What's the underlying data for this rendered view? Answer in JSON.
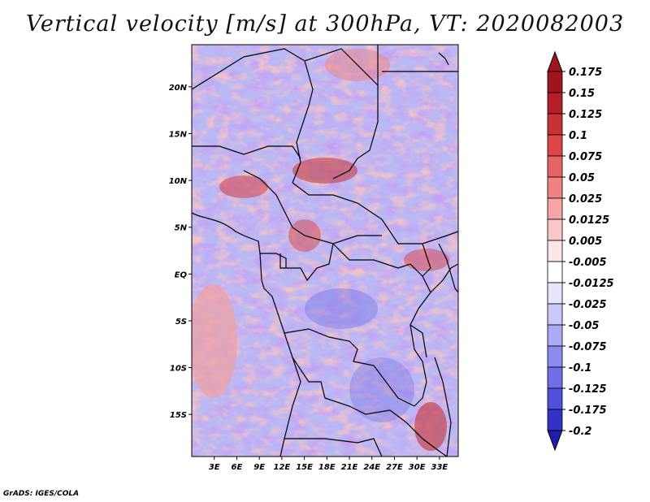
{
  "title": "Vertical velocity [m/s] at 300hPa, VT: 2020082003",
  "credit": "GrADS: IGES/COLA",
  "map": {
    "lon_range": [
      0,
      35.5
    ],
    "lat_range": [
      -19.5,
      24.5
    ],
    "lat_ticks": [
      {
        "value": 20,
        "label": "20N"
      },
      {
        "value": 15,
        "label": "15N"
      },
      {
        "value": 10,
        "label": "10N"
      },
      {
        "value": 5,
        "label": "5N"
      },
      {
        "value": 0,
        "label": "EQ"
      },
      {
        "value": -5,
        "label": "5S"
      },
      {
        "value": -10,
        "label": "10S"
      },
      {
        "value": -15,
        "label": "15S"
      }
    ],
    "lon_ticks": [
      {
        "value": 3,
        "label": "3E"
      },
      {
        "value": 6,
        "label": "6E"
      },
      {
        "value": 9,
        "label": "9E"
      },
      {
        "value": 12,
        "label": "12E"
      },
      {
        "value": 15,
        "label": "15E"
      },
      {
        "value": 18,
        "label": "18E"
      },
      {
        "value": 21,
        "label": "21E"
      },
      {
        "value": 24,
        "label": "24E"
      },
      {
        "value": 27,
        "label": "27E"
      },
      {
        "value": 30,
        "label": "30E"
      },
      {
        "value": 33,
        "label": "33E"
      }
    ]
  },
  "colorbar": {
    "levels": [
      {
        "label": "0.175",
        "color": "#a0141e"
      },
      {
        "label": "0.15",
        "color": "#b41e28"
      },
      {
        "label": "0.125",
        "color": "#c83232"
      },
      {
        "label": "0.1",
        "color": "#dc4646"
      },
      {
        "label": "0.075",
        "color": "#e66464"
      },
      {
        "label": "0.05",
        "color": "#f08282"
      },
      {
        "label": "0.025",
        "color": "#f5a5a5"
      },
      {
        "label": "0.0125",
        "color": "#fac8c8"
      },
      {
        "label": "0.005",
        "color": "#fde6e6"
      },
      {
        "label": "-0.005",
        "color": "#ffffff"
      },
      {
        "label": "-0.0125",
        "color": "#e6e6fc"
      },
      {
        "label": "-0.025",
        "color": "#c8c8fa"
      },
      {
        "label": "-0.05",
        "color": "#aaaaf5"
      },
      {
        "label": "-0.075",
        "color": "#8c8cf0"
      },
      {
        "label": "-0.1",
        "color": "#6e6ee6"
      },
      {
        "label": "-0.125",
        "color": "#5050dc"
      },
      {
        "label": "-0.175",
        "color": "#3232c8"
      },
      {
        "label": "-0.2",
        "color": "#1e1eaa"
      }
    ],
    "top_cap_color": "#a0141e",
    "bottom_cap_color": "#1e1eaa"
  }
}
